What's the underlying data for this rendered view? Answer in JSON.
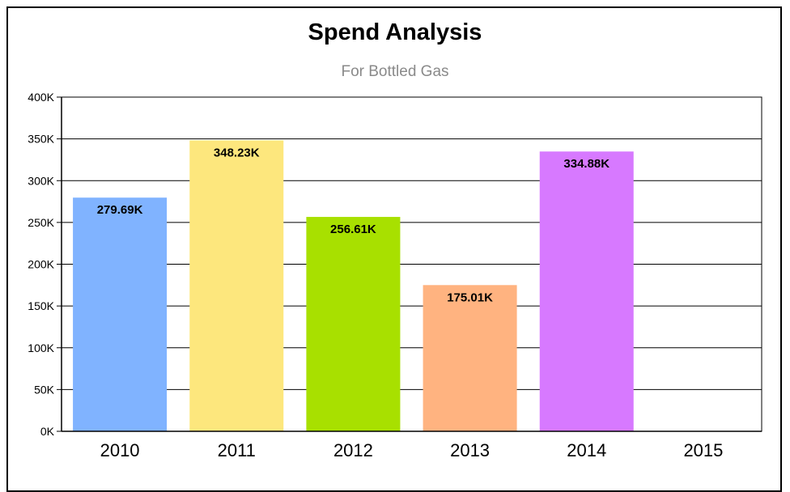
{
  "chart_data": {
    "type": "bar",
    "title": "Spend Analysis",
    "subtitle": "For Bottled Gas",
    "categories": [
      "2010",
      "2011",
      "2012",
      "2013",
      "2014",
      "2015"
    ],
    "values": [
      279.69,
      348.23,
      256.61,
      175.01,
      334.88,
      0
    ],
    "data_labels": [
      "279.69K",
      "348.23K",
      "256.61K",
      "175.01K",
      "334.88K",
      ""
    ],
    "colors": [
      "#80b3ff",
      "#fde77d",
      "#a8e000",
      "#ffb380",
      "#d779ff",
      "#cccccc"
    ],
    "y_ticks": [
      "0K",
      "50K",
      "100K",
      "150K",
      "200K",
      "250K",
      "300K",
      "350K",
      "400K"
    ],
    "ylim": [
      0,
      400
    ],
    "grid": true,
    "legend": "none"
  }
}
